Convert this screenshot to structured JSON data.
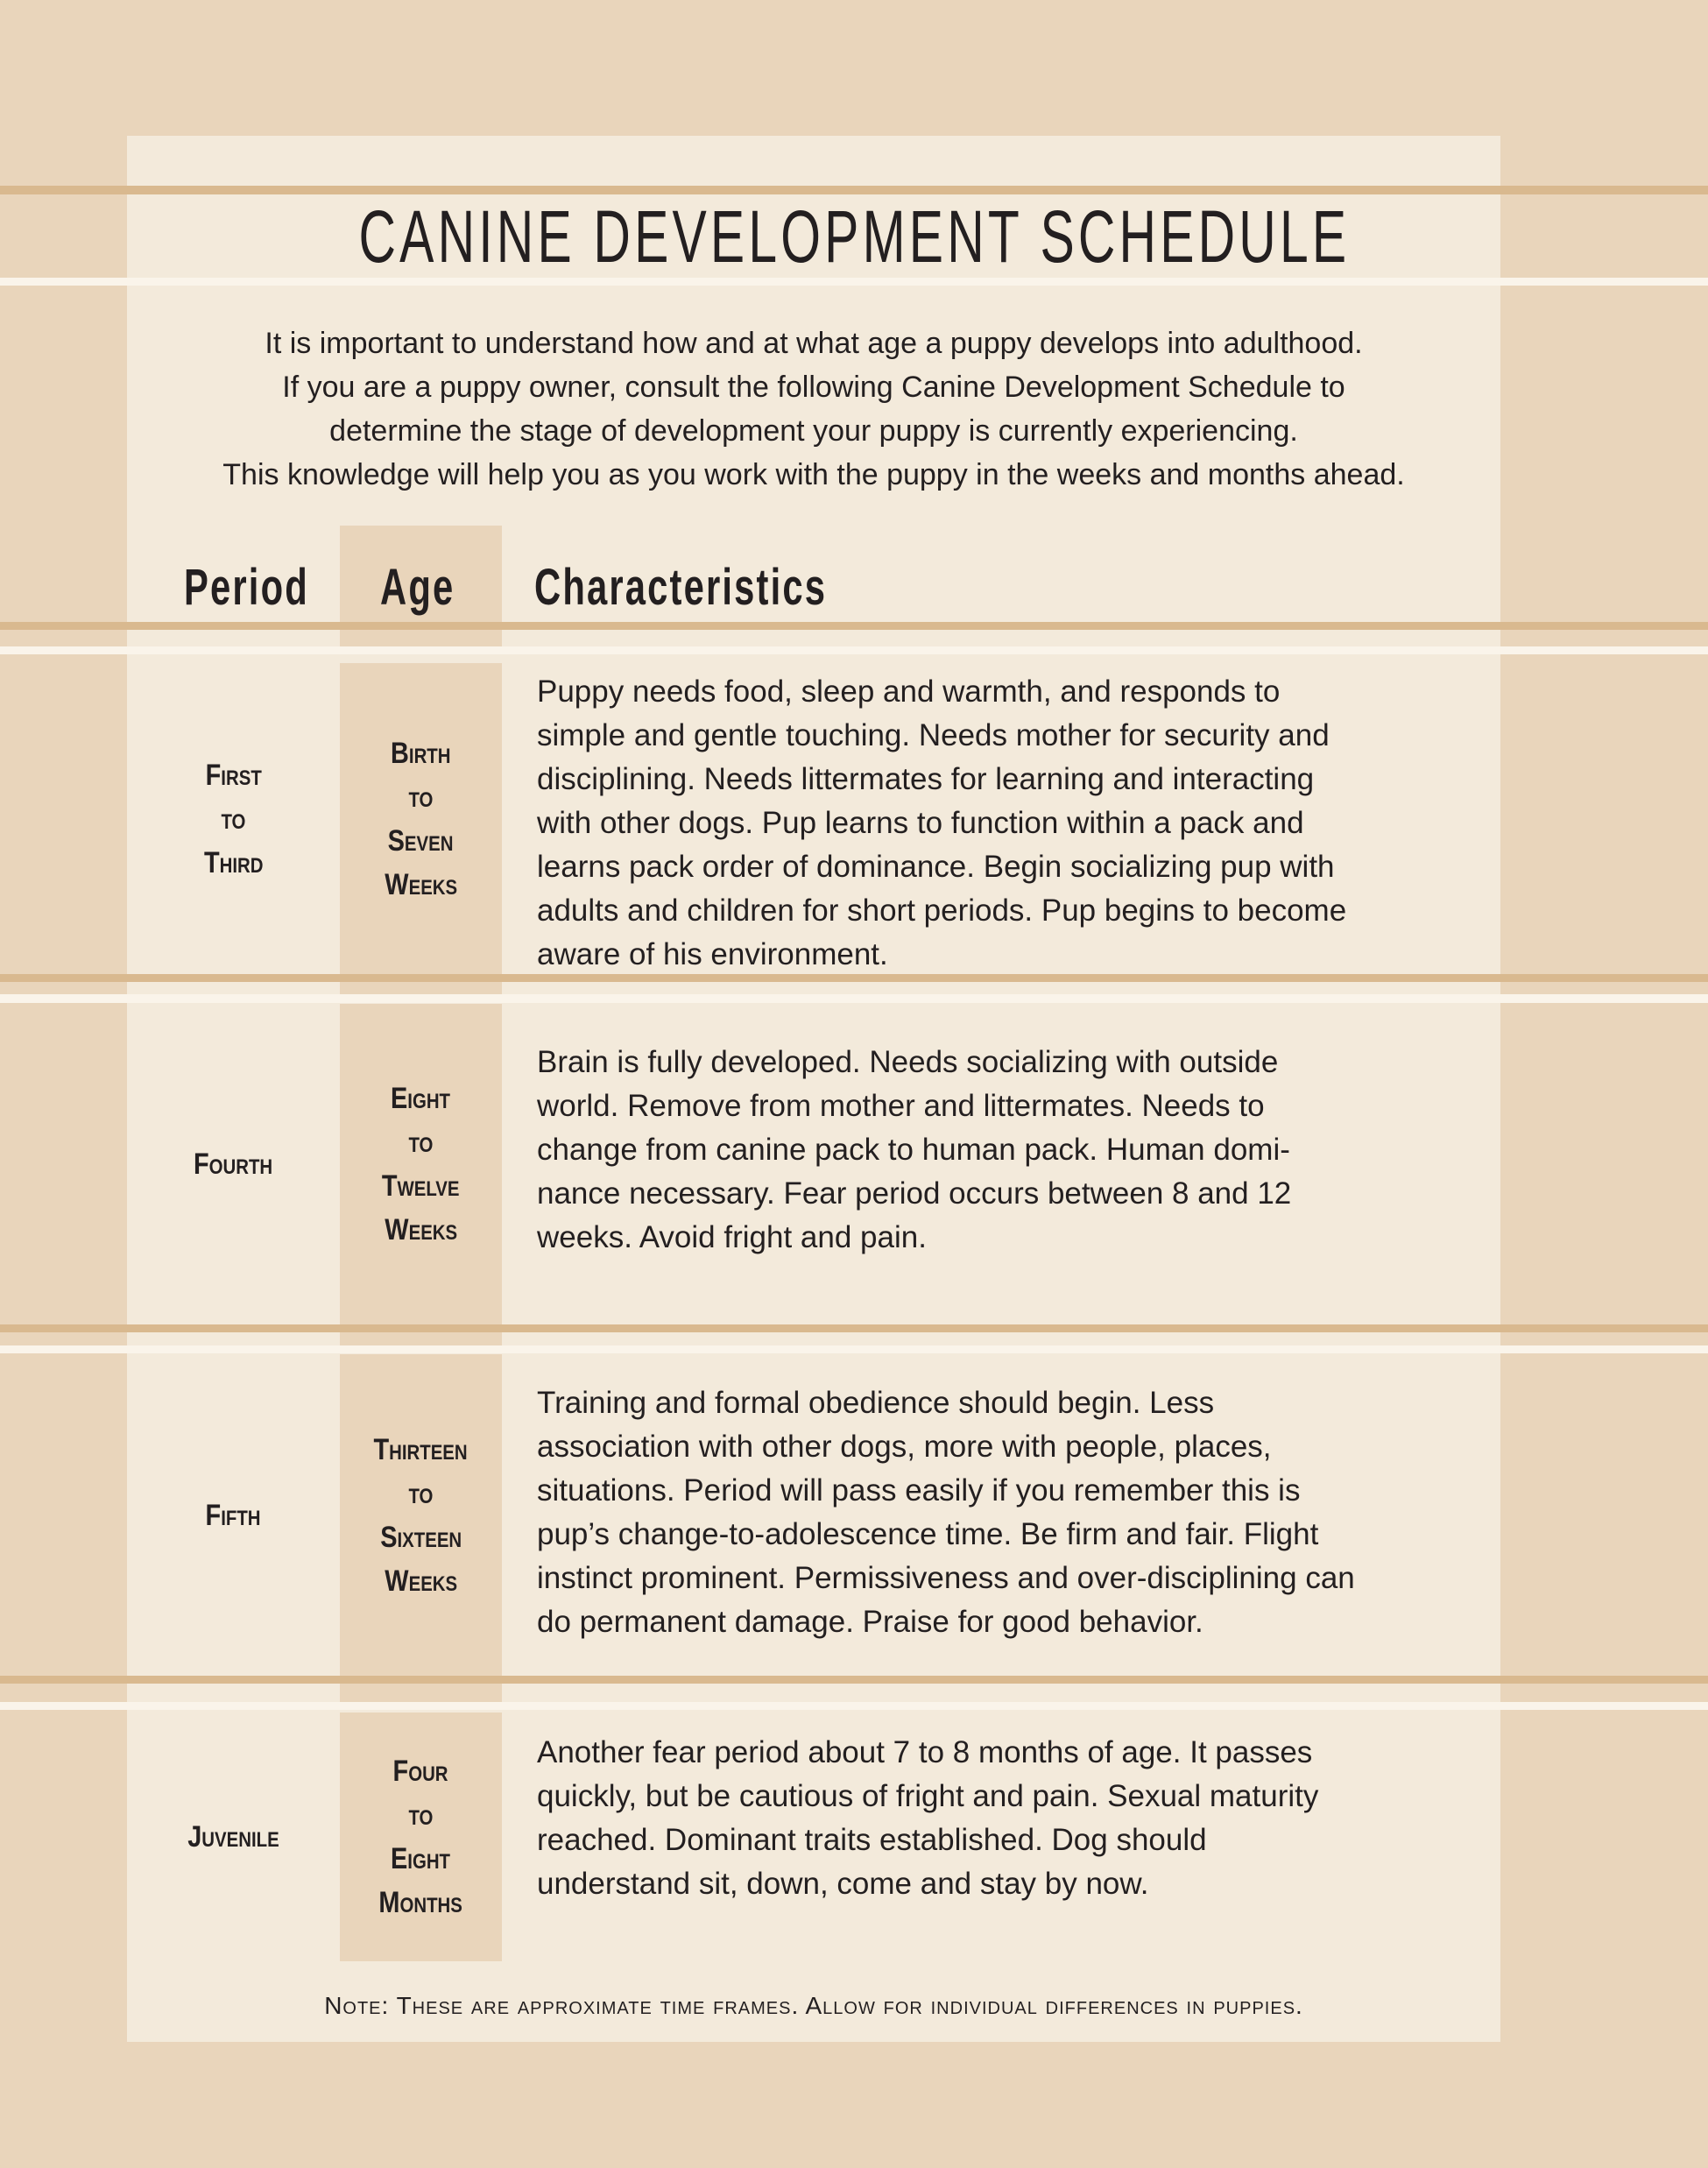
{
  "title": "CANINE DEVELOPMENT SCHEDULE",
  "intro": [
    "It is important to understand how and at what age a puppy develops into adulthood.",
    "If you are a puppy owner, consult the following Canine Development Schedule to",
    "determine the stage of development your puppy is currently experiencing.",
    "This knowledge will help you as you work with the puppy in the weeks and months ahead."
  ],
  "headers": {
    "period": "Period",
    "age": "Age",
    "characteristics": "Characteristics"
  },
  "rows": [
    {
      "period": [
        "First",
        "to",
        "Third"
      ],
      "age": [
        "Birth",
        "to",
        "Seven",
        "Weeks"
      ],
      "characteristics": [
        "Puppy needs food, sleep and warmth, and responds to",
        "simple and gentle touching. Needs mother for security and",
        "disciplining. Needs littermates for learning and interacting",
        "with other dogs. Pup learns to function within a pack and",
        "learns pack order of dominance. Begin socializing pup with",
        "adults and children for short periods. Pup begins to become",
        "aware of his environment."
      ]
    },
    {
      "period": [
        "Fourth"
      ],
      "age": [
        "Eight",
        "to",
        "Twelve",
        "Weeks"
      ],
      "characteristics": [
        "Brain is fully developed. Needs socializing with outside",
        "world. Remove from mother and littermates. Needs to",
        "change from canine pack to human pack. Human domi-",
        "nance necessary. Fear period occurs between 8 and 12",
        "weeks. Avoid fright and pain."
      ]
    },
    {
      "period": [
        "Fifth"
      ],
      "age": [
        "Thirteen",
        "to",
        "Sixteen",
        "Weeks"
      ],
      "characteristics": [
        "Training and formal obedience should begin. Less",
        "association with other dogs, more with people, places,",
        "situations. Period will pass easily if you remember this is",
        "pup’s change-to-adolescence time. Be firm and fair. Flight",
        "instinct prominent. Permissiveness and over-disciplining can",
        "do permanent damage. Praise for good behavior."
      ]
    },
    {
      "period": [
        "Juvenile"
      ],
      "age": [
        "Four",
        "to",
        "Eight",
        "Months"
      ],
      "characteristics": [
        "Another fear period about 7 to 8 months of age. It passes",
        "quickly, but be cautious of fright and pain. Sexual maturity",
        "reached. Dominant traits established. Dog should",
        "understand sit, down, come and stay by now."
      ]
    }
  ],
  "note": "Note: These are approximate time frames. Allow for individual differences in puppies.",
  "colors": {
    "background": "#e9d5bb",
    "panel": "#f3eadb",
    "rule": "#d9b98f",
    "highlight": "#faf4ea",
    "text": "#231f20"
  }
}
